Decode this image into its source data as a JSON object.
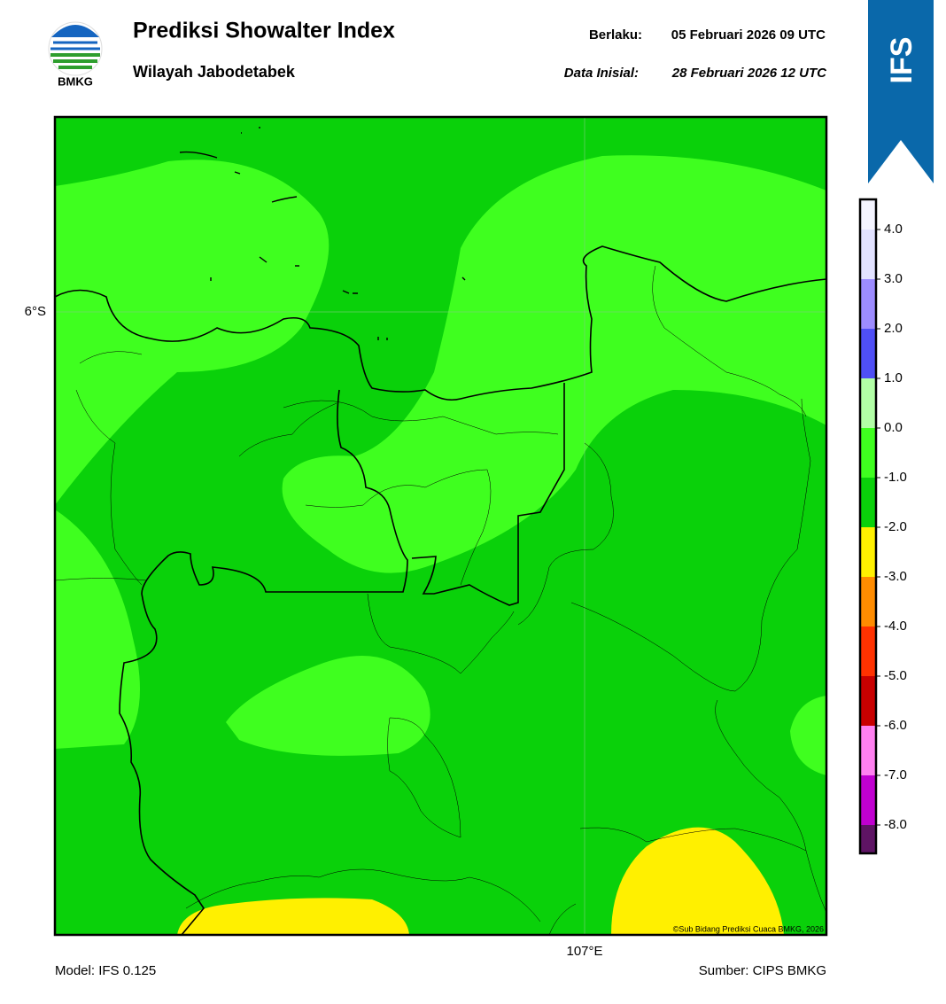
{
  "header": {
    "title": "Prediksi Showalter Index",
    "subtitle": "Wilayah Jabodetabek",
    "valid_label": "Berlaku:",
    "valid": "05 Februari 2026 09 UTC",
    "init_label": "Data Inisial:",
    "init": "28 Februari 2026 12 UTC"
  },
  "logo": {
    "text": "BMKG"
  },
  "banner": {
    "text": "IFS"
  },
  "map": {
    "lat_label": "6°S",
    "lon_label": "107°E",
    "copyright": "©Sub Bidang Prediksi Cuaca BMKG, 2026"
  },
  "colorbar": {
    "ticks": [
      {
        "value": 4,
        "label": "4.0"
      },
      {
        "value": 3,
        "label": "3.0"
      },
      {
        "value": 2,
        "label": "2.0"
      },
      {
        "value": 1,
        "label": "1.0"
      },
      {
        "value": 0,
        "label": "0.0"
      },
      {
        "value": -1,
        "label": "-1.0"
      },
      {
        "value": -2,
        "label": "-2.0"
      },
      {
        "value": -3,
        "label": "-3.0"
      },
      {
        "value": -4,
        "label": "-4.0"
      },
      {
        "value": -5,
        "label": "-5.0"
      },
      {
        "value": -6,
        "label": "-6.0"
      },
      {
        "value": -7,
        "label": "-7.0"
      },
      {
        "value": -8,
        "label": "-8.0"
      }
    ],
    "colors": [
      "#f4f4ff",
      "#e2e2ff",
      "#9d8cff",
      "#4f4ff5",
      "#b2ffa6",
      "#3fff1f",
      "#0ad10a",
      "#fff000",
      "#ff8c00",
      "#ff3200",
      "#c80000",
      "#ff80f0",
      "#c000d0",
      "#5e1464"
    ]
  },
  "footer": {
    "model": "Model: IFS 0.125",
    "source": "Sumber: CIPS BMKG"
  }
}
